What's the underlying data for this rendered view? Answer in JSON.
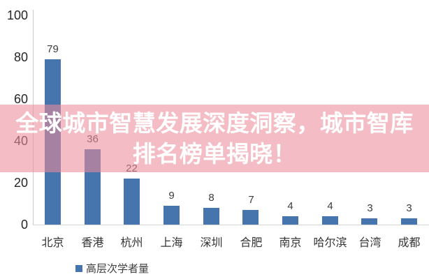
{
  "banner": {
    "line1": "全球城市智慧发展深度洞察，城市智库",
    "line2": "排名榜单揭晓！",
    "text_color": "#ffffff",
    "overlay_color": "rgba(236,140,154,0.58)"
  },
  "chart_data": {
    "type": "bar",
    "title": "",
    "categories": [
      "北京",
      "香港",
      "杭州",
      "上海",
      "深圳",
      "合肥",
      "南京",
      "哈尔滨",
      "台湾",
      "成都"
    ],
    "values": [
      79,
      36,
      22,
      9,
      8,
      7,
      4,
      4,
      3,
      3
    ],
    "series_name": "高层次学者量",
    "xlabel": "",
    "ylabel": "",
    "ylim": [
      0,
      100
    ],
    "yticks": [
      0,
      20,
      40,
      60,
      80,
      100
    ],
    "grid": false,
    "value_labels": true,
    "legend_position": "bottom-left",
    "bar_color": "#4674ad",
    "axis_line_color": "#d6d6d6",
    "tick_text_color": "#262626"
  },
  "legend": {
    "label": "高层次学者量",
    "swatch_color": "#4674ad"
  }
}
